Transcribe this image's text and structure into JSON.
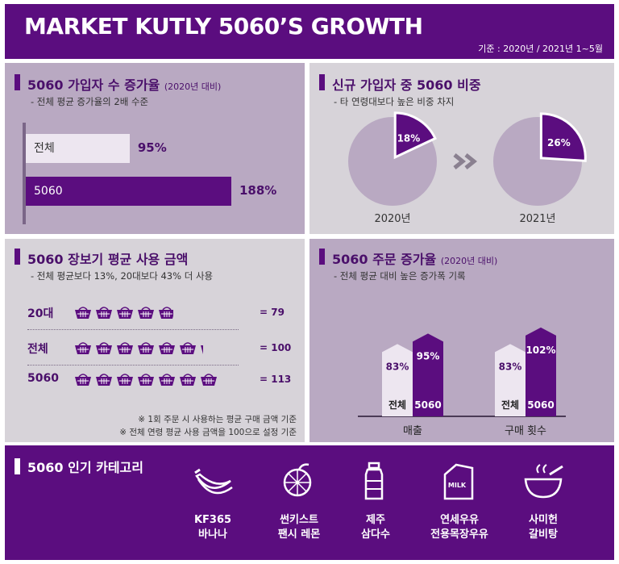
{
  "header": {
    "title": "MARKET KUTLY 5060’S GROWTH",
    "subtitle": "기준 : 2020년 / 2021년 1~5월"
  },
  "panel1": {
    "title": "5060 가입자 수 증가율",
    "title_small": "(2020년 대비)",
    "subtitle": "- 전체 평균 증가율의 2배 수준"
  },
  "panel2": {
    "title": "신규 가입자 중 5060 비중",
    "subtitle": "- 타 연령대보다 높은 비중 차지"
  },
  "panel3": {
    "title": "5060 장보기 평균 사용 금액",
    "subtitle": "- 전체 평균보다 13%, 20대보다 43% 더 사용",
    "note1": "※ 1회 주문 시 사용하는 평균 구매 금액 기준",
    "note2": "※ 전체 연령 평균 사용 금액을 100으로 설정 기준"
  },
  "panel4": {
    "title": "5060 주문 증가율",
    "title_small": "(2020년 대비)",
    "subtitle": "- 전체 평균 대비 높은 증가폭 기록"
  },
  "bottom": {
    "title": "5060 인기 카테고리",
    "items": [
      {
        "line1": "KF365",
        "line2": "바나나",
        "icon": "banana-icon"
      },
      {
        "line1": "썬키스트",
        "line2": "팬시 레몬",
        "icon": "lemon-icon"
      },
      {
        "line1": "제주",
        "line2": "삼다수",
        "icon": "water-bottle-icon"
      },
      {
        "line1": "연세우유",
        "line2": "전용목장우유",
        "icon": "milk-carton-icon"
      },
      {
        "line1": "사미헌",
        "line2": "갈비탕",
        "icon": "soup-bowl-icon"
      }
    ]
  },
  "colors": {
    "purple": "#5b0d7f",
    "light": "#ede6f0",
    "grey_panel": "#d7d3d9",
    "pie_base": "#b9a9c2"
  },
  "chart_data": [
    {
      "type": "bar",
      "orientation": "horizontal",
      "categories": [
        "전체",
        "5060"
      ],
      "values": [
        95,
        188
      ],
      "value_labels": [
        "95%",
        "188%"
      ]
    },
    {
      "type": "pie",
      "charts": [
        {
          "label": "2020년",
          "share": 18,
          "share_label": "18%"
        },
        {
          "label": "2021년",
          "share": 26,
          "share_label": "26%"
        }
      ]
    },
    {
      "type": "table",
      "rows": [
        {
          "label": "20대",
          "value": 79,
          "value_label": "= 79"
        },
        {
          "label": "전체",
          "value": 100,
          "value_label": "= 100"
        },
        {
          "label": "5060",
          "value": 113,
          "value_label": "= 113"
        }
      ]
    },
    {
      "type": "bar",
      "categories": [
        "매출",
        "구매 횟수"
      ],
      "series": [
        {
          "name": "전체",
          "values": [
            83,
            83
          ],
          "value_labels": [
            "83%",
            "83%"
          ]
        },
        {
          "name": "5060",
          "values": [
            95,
            102
          ],
          "value_labels": [
            "95%",
            "102%"
          ]
        }
      ]
    }
  ]
}
